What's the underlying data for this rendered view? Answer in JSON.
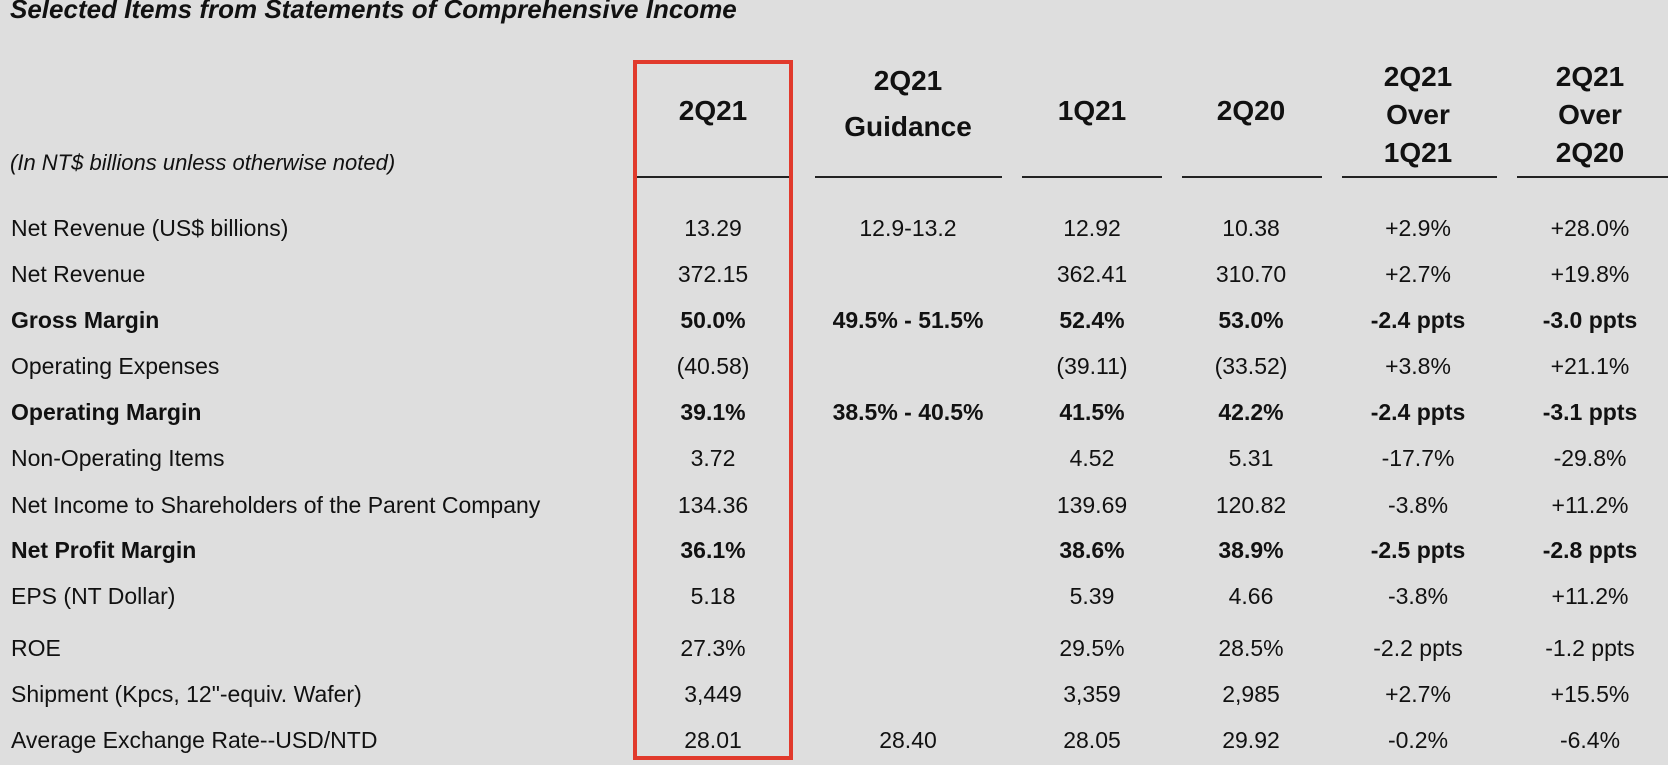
{
  "title": "Selected Items from Statements of Comprehensive Income",
  "unit_note": "(In NT$ billions unless otherwise noted)",
  "columns": [
    {
      "lines": [
        "2Q21"
      ]
    },
    {
      "lines": [
        "2Q21",
        "Guidance"
      ]
    },
    {
      "lines": [
        "1Q21"
      ]
    },
    {
      "lines": [
        "2Q20"
      ]
    },
    {
      "lines": [
        "2Q21",
        "Over",
        "1Q21"
      ]
    },
    {
      "lines": [
        "2Q21",
        "Over",
        "2Q20"
      ]
    }
  ],
  "rows": [
    {
      "label": "Net Revenue (US$ billions)",
      "bold": false,
      "values": [
        "13.29",
        "12.9-13.2",
        "12.92",
        "10.38",
        "+2.9%",
        "+28.0%"
      ]
    },
    {
      "label": "Net Revenue",
      "bold": false,
      "values": [
        "372.15",
        "",
        "362.41",
        "310.70",
        "+2.7%",
        "+19.8%"
      ]
    },
    {
      "label": "Gross Margin",
      "bold": true,
      "values": [
        "50.0%",
        "49.5% - 51.5%",
        "52.4%",
        "53.0%",
        "-2.4 ppts",
        "-3.0 ppts"
      ]
    },
    {
      "label": "Operating Expenses",
      "bold": false,
      "values": [
        "(40.58)",
        "",
        "(39.11)",
        "(33.52)",
        "+3.8%",
        "+21.1%"
      ]
    },
    {
      "label": "Operating Margin",
      "bold": true,
      "values": [
        "39.1%",
        "38.5% - 40.5%",
        "41.5%",
        "42.2%",
        "-2.4 ppts",
        "-3.1 ppts"
      ]
    },
    {
      "label": "Non-Operating Items",
      "bold": false,
      "values": [
        "3.72",
        "",
        "4.52",
        "5.31",
        "-17.7%",
        "-29.8%"
      ]
    },
    {
      "label": "Net Income to Shareholders of the Parent Company",
      "bold": false,
      "values": [
        "134.36",
        "",
        "139.69",
        "120.82",
        "-3.8%",
        "+11.2%"
      ]
    },
    {
      "label": "Net Profit Margin",
      "bold": true,
      "values": [
        "36.1%",
        "",
        "38.6%",
        "38.9%",
        "-2.5 ppts",
        "-2.8 ppts"
      ]
    },
    {
      "label": "EPS (NT Dollar)",
      "bold": false,
      "values": [
        "5.18",
        "",
        "5.39",
        "4.66",
        "-3.8%",
        "+11.2%"
      ]
    },
    {
      "label": "ROE",
      "bold": false,
      "values": [
        "27.3%",
        "",
        "29.5%",
        "28.5%",
        "-2.2 ppts",
        "-1.2 ppts"
      ]
    },
    {
      "label": "Shipment (Kpcs, 12\"-equiv. Wafer)",
      "bold": false,
      "values": [
        "3,449",
        "",
        "3,359",
        "2,985",
        "+2.7%",
        "+15.5%"
      ]
    },
    {
      "label": "Average Exchange Rate--USD/NTD",
      "bold": false,
      "values": [
        "28.01",
        "28.40",
        "28.05",
        "29.92",
        "-0.2%",
        "-6.4%"
      ]
    }
  ],
  "colors": {
    "highlight_border": "#e13a2c",
    "background": "#dedede"
  }
}
